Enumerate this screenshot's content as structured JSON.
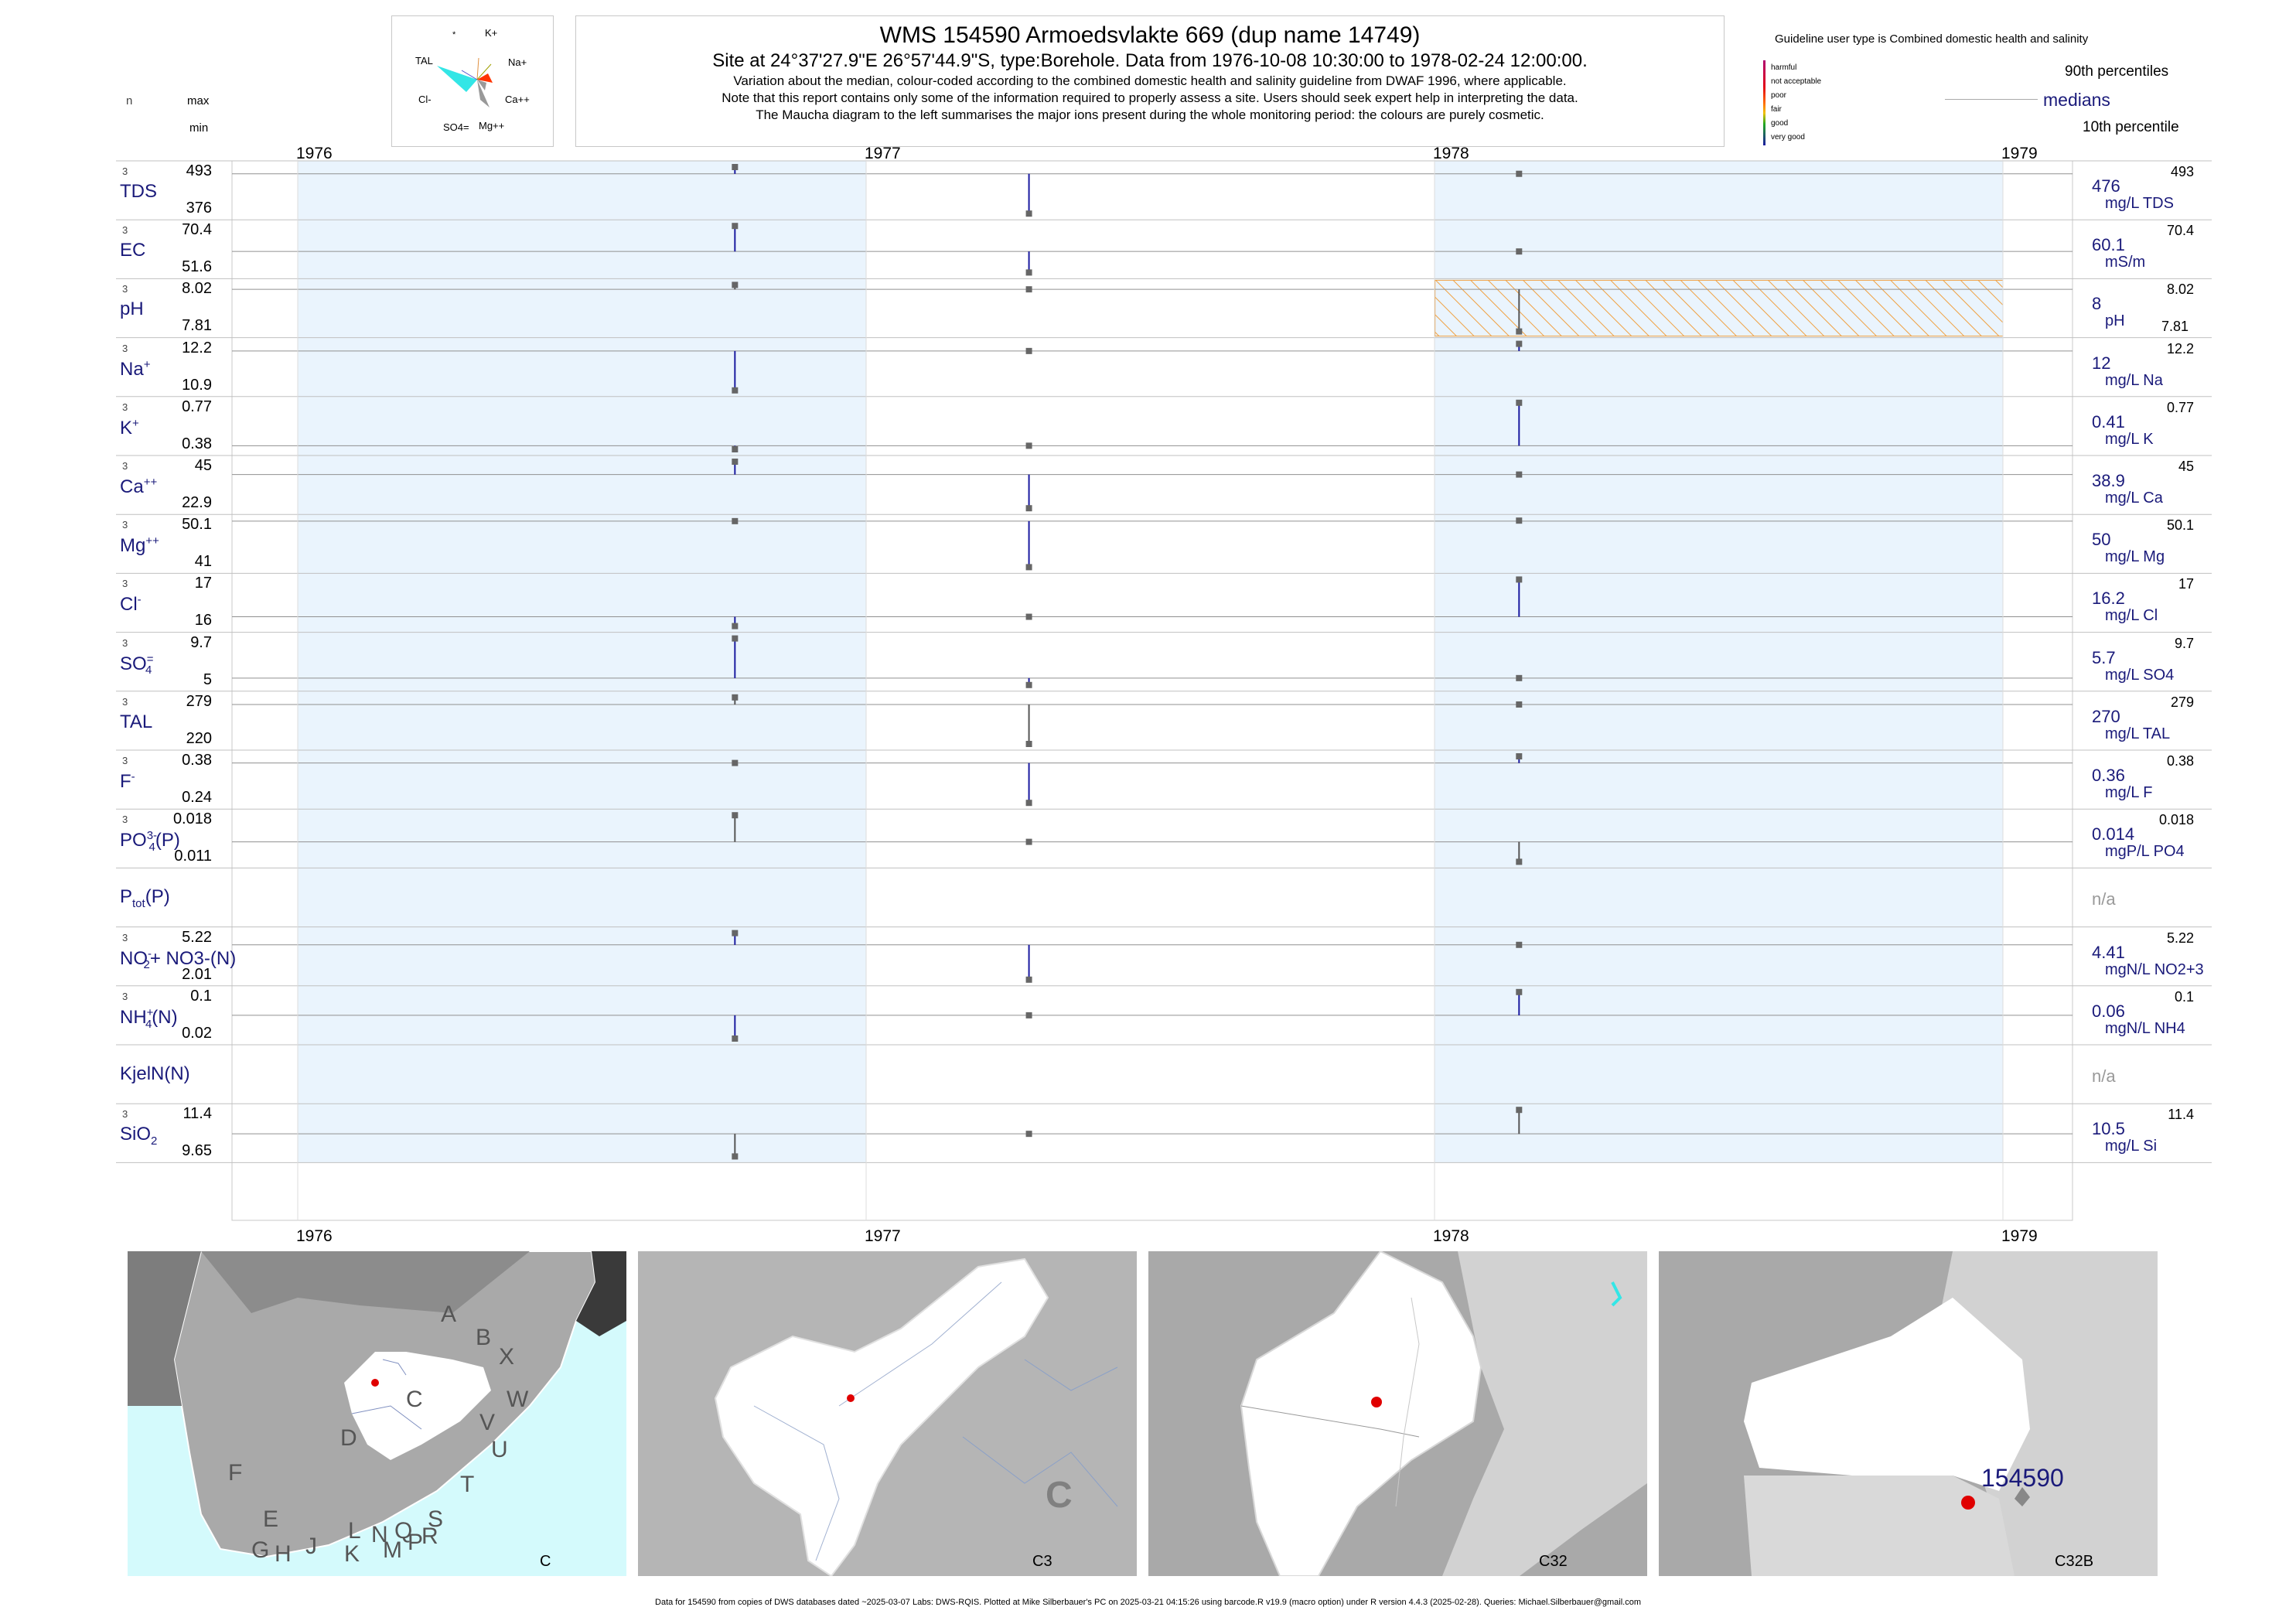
{
  "header": {
    "title": "WMS 154590  Armoedsvlakte 669 (dup name 14749)",
    "site_line": "Site at 24°37'27.9\"E 26°57'44.9\"S, type:Borehole.  Data from 1976-10-08 10:30:00 to 1978-02-24 12:00:00.",
    "note1": "Variation about the median,  colour-coded according to the combined domestic health and salinity guideline from DWAF 1996, where applicable.",
    "note2": "Note that this report contains only some of the information required to properly assess a site. Users should seek expert help in interpreting the data.",
    "note3": "The Maucha diagram to the left summarises the major ions present during the whole monitoring period: the colours are purely cosmetic."
  },
  "column_headers": {
    "n": "n",
    "max": "max",
    "min": "min"
  },
  "maucha": {
    "labels": [
      "*",
      "K+",
      "Na+",
      "Ca++",
      "Mg++",
      "SO4=",
      "Cl-",
      "TAL"
    ]
  },
  "guideline": {
    "title": "Guideline user type is Combined domestic health and salinity",
    "levels": [
      {
        "label": "harmful",
        "color": "#b0006e"
      },
      {
        "label": "not acceptable",
        "color": "#e0001a"
      },
      {
        "label": "poor",
        "color": "#ff6a00"
      },
      {
        "label": "fair",
        "color": "#f0c000"
      },
      {
        "label": "good",
        "color": "#22a822"
      },
      {
        "label": "very good",
        "color": "#1a1aa0"
      }
    ],
    "p90_label": "90th percentiles",
    "median_label": "medians",
    "p10_label": "10th percentile"
  },
  "chart_data": {
    "type": "line",
    "x_axis": {
      "years": [
        "1976",
        "1977",
        "1978",
        "1979"
      ],
      "range": [
        "1976-01-01",
        "1979-01-01"
      ]
    },
    "sample_dates": [
      "1976-10-08",
      "1977-04-15",
      "1978-02-24"
    ],
    "series": [
      {
        "key": "TDS",
        "label": "TDS",
        "n": "3",
        "max": "493",
        "min": "376",
        "median": "476",
        "unit": "mg/L TDS",
        "right_max": "493",
        "values": [
          493,
          376,
          476
        ],
        "color": "#1a1aa0"
      },
      {
        "key": "EC",
        "label": "EC",
        "n": "3",
        "max": "70.4",
        "min": "51.6",
        "median": "60.1",
        "unit": "mS/m",
        "right_max": "70.4",
        "values": [
          70.4,
          51.6,
          60.1
        ],
        "color": "#1a1aa0"
      },
      {
        "key": "pH",
        "label": "pH",
        "n": "3",
        "max": "8.02",
        "min": "7.81",
        "median": "8",
        "unit": "pH",
        "right_max": "8.02",
        "right_min": "7.81",
        "values": [
          8.02,
          8.0,
          7.81
        ],
        "color": "#555555"
      },
      {
        "key": "Na",
        "label": "Na",
        "sup": "+",
        "n": "3",
        "max": "12.2",
        "min": "10.9",
        "median": "12",
        "unit": "mg/L Na",
        "right_max": "12.2",
        "values": [
          10.9,
          12.0,
          12.2
        ],
        "color": "#1a1aa0"
      },
      {
        "key": "K",
        "label": "K",
        "sup": "+",
        "n": "3",
        "max": "0.77",
        "min": "0.38",
        "median": "0.41",
        "unit": "mg/L K",
        "right_max": "0.77",
        "values": [
          0.38,
          0.41,
          0.77
        ],
        "color": "#1a1aa0"
      },
      {
        "key": "Ca",
        "label": "Ca",
        "sup": "++",
        "n": "3",
        "max": "45",
        "min": "22.9",
        "median": "38.9",
        "unit": "mg/L Ca",
        "right_max": "45",
        "values": [
          45,
          22.9,
          38.9
        ],
        "color": "#1a1aa0"
      },
      {
        "key": "Mg",
        "label": "Mg",
        "sup": "++",
        "n": "3",
        "max": "50.1",
        "min": "41",
        "median": "50",
        "unit": "mg/L Mg",
        "right_max": "50.1",
        "values": [
          50.0,
          41,
          50.1
        ],
        "color": "#1a1aa0"
      },
      {
        "key": "Cl",
        "label": "Cl",
        "sup": "-",
        "n": "3",
        "max": "17",
        "min": "16",
        "median": "16.2",
        "unit": "mg/L Cl",
        "right_max": "17",
        "values": [
          16,
          16.2,
          17
        ],
        "color": "#1a1aa0"
      },
      {
        "key": "SO4",
        "label": "SO",
        "sub": "4",
        "sup": "=",
        "n": "3",
        "max": "9.7",
        "min": "5",
        "median": "5.7",
        "unit": "mg/L SO4",
        "right_max": "9.7",
        "values": [
          9.7,
          5,
          5.7
        ],
        "color": "#1a1aa0"
      },
      {
        "key": "TAL",
        "label": "TAL",
        "n": "3",
        "max": "279",
        "min": "220",
        "median": "270",
        "unit": "mg/L TAL",
        "right_max": "279",
        "values": [
          279,
          220,
          270
        ],
        "color": "#555555"
      },
      {
        "key": "F",
        "label": "F",
        "sup": "-",
        "n": "3",
        "max": "0.38",
        "min": "0.24",
        "median": "0.36",
        "unit": "mg/L F",
        "right_max": "0.38",
        "values": [
          0.36,
          0.24,
          0.38
        ],
        "color": "#1a1aa0"
      },
      {
        "key": "PO4",
        "label": "PO",
        "sub": "4",
        "sup": "3-",
        "suffix": "(P)",
        "n": "3",
        "max": "0.018",
        "min": "0.011",
        "median": "0.014",
        "unit": "mgP/L PO4",
        "right_max": "0.018",
        "values": [
          0.018,
          0.014,
          0.011
        ],
        "color": "#555555"
      },
      {
        "key": "Ptot",
        "label": "P",
        "sub": "tot",
        "suffix": "(P)",
        "n": "",
        "max": "",
        "min": "",
        "median": "n/a",
        "unit": "",
        "right_max": "",
        "values": [],
        "color": "#1a1aa0"
      },
      {
        "key": "NO3",
        "label": "NO",
        "sub": "2",
        "sup": "-",
        "suffix": "+ NO3-(N)",
        "n": "3",
        "max": "5.22",
        "min": "2.01",
        "median": "4.41",
        "unit": "mgN/L NO2+3",
        "right_max": "5.22",
        "values": [
          5.22,
          2.01,
          4.41
        ],
        "color": "#1a1aa0"
      },
      {
        "key": "NH4",
        "label": "NH",
        "sub": "4",
        "sup": "+",
        "suffix": "(N)",
        "n": "3",
        "max": "0.1",
        "min": "0.02",
        "median": "0.06",
        "unit": "mgN/L NH4",
        "right_max": "0.1",
        "values": [
          0.02,
          0.06,
          0.1
        ],
        "color": "#1a1aa0"
      },
      {
        "key": "KjelN",
        "label": "KjelN(N)",
        "n": "",
        "max": "",
        "min": "",
        "median": "n/a",
        "unit": "",
        "right_max": "",
        "values": [],
        "color": "#1a1aa0"
      },
      {
        "key": "SiO2",
        "label": "SiO",
        "sub": "2",
        "n": "3",
        "max": "11.4",
        "min": "9.65",
        "median": "10.5",
        "unit": "mg/L Si",
        "right_max": "11.4",
        "values": [
          9.65,
          10.5,
          11.4
        ],
        "color": "#555555"
      }
    ],
    "ph_hatch": {
      "from": "1978-01-01",
      "to": "1979-01-01",
      "color": "#f0a040"
    }
  },
  "maps": [
    {
      "label": "C",
      "letters": [
        "A",
        "B",
        "X",
        "W",
        "C",
        "D",
        "V",
        "U",
        "T",
        "F",
        "E",
        "G",
        "H",
        "J",
        "K",
        "L",
        "M",
        "N",
        "P",
        "Q",
        "R",
        "S"
      ]
    },
    {
      "label": "C3",
      "big_letter": "C"
    },
    {
      "label": "C32"
    },
    {
      "label": "C32B",
      "site_label": "154590"
    }
  ],
  "footer": "Data for 154590 from copies of DWS databases dated ~2025-03-07 Labs: DWS-RQIS. Plotted at Mike Silberbauer's PC on 2025-03-21 04:15:26 using barcode.R v19.9 (macro option) under R version 4.4.3 (2025-02-28). Queries: Michael.Silberbauer@gmail.com"
}
